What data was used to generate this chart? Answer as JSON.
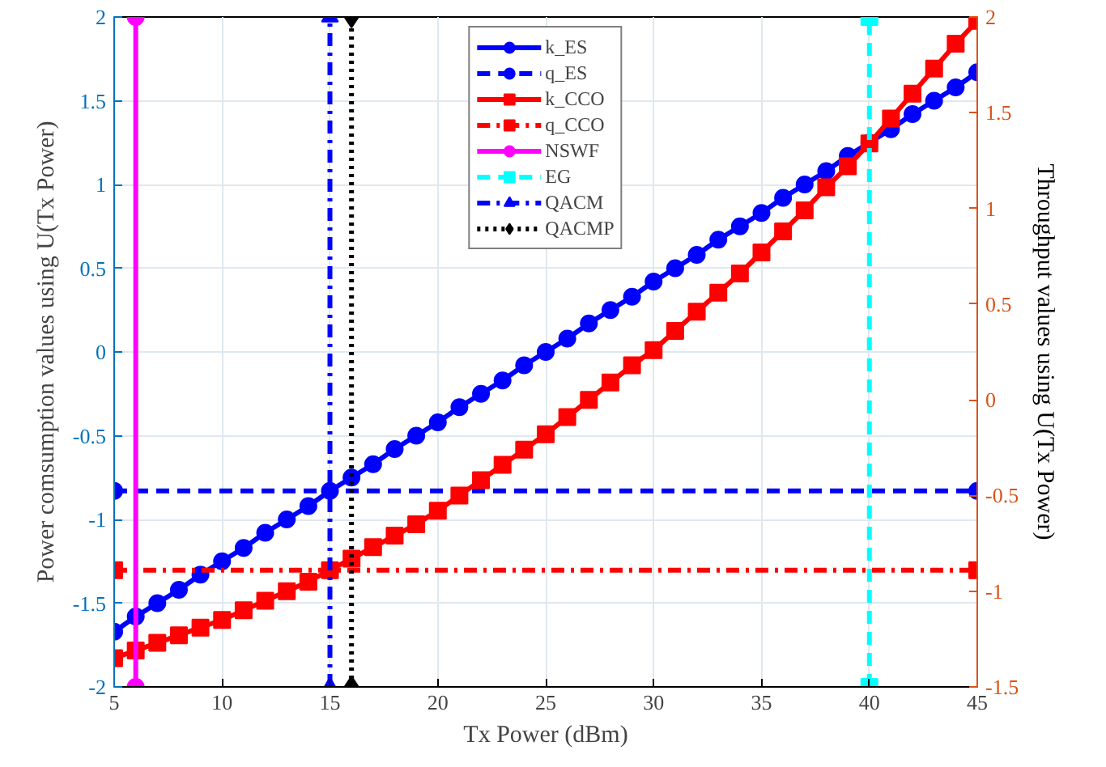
{
  "chart_data": {
    "type": "line",
    "xlabel": "Tx Power (dBm)",
    "ylabel": "Power comsumption values using U(Tx Power)",
    "y2label": "Throughput values using U(Tx Power)",
    "xlim": [
      5,
      45
    ],
    "xticks": [
      5,
      10,
      15,
      20,
      25,
      30,
      35,
      40,
      45
    ],
    "ylim": [
      -2,
      2
    ],
    "yticks": [
      -2,
      -1.5,
      -1,
      -0.5,
      0,
      0.5,
      1,
      1.5,
      2
    ],
    "y2lim": [
      -1.5,
      2
    ],
    "y2ticks": [
      -1.5,
      -1,
      -0.5,
      0,
      0.5,
      1,
      1.5,
      2
    ],
    "grid": true,
    "legend": "top",
    "x": [
      5,
      6,
      7,
      8,
      9,
      10,
      11,
      12,
      13,
      14,
      15,
      16,
      17,
      18,
      19,
      20,
      21,
      22,
      23,
      24,
      25,
      26,
      27,
      28,
      29,
      30,
      31,
      32,
      33,
      34,
      35,
      36,
      37,
      38,
      39,
      40,
      41,
      42,
      43,
      44,
      45
    ],
    "series": [
      {
        "name": "k_ES",
        "color": "#0000ff",
        "marker": "circle",
        "line_style": "solid",
        "values": [
          -1.67,
          -1.58,
          -1.5,
          -1.42,
          -1.33,
          -1.25,
          -1.17,
          -1.08,
          -1,
          -0.92,
          -0.83,
          -0.75,
          -0.67,
          -0.58,
          -0.5,
          -0.42,
          -0.33,
          -0.25,
          -0.17,
          -0.08,
          0,
          0.08,
          0.17,
          0.25,
          0.33,
          0.42,
          0.5,
          0.58,
          0.67,
          0.75,
          0.83,
          0.92,
          1,
          1.08,
          1.17,
          1.25,
          1.33,
          1.42,
          1.5,
          1.58,
          1.67
        ]
      },
      {
        "name": "q_ES",
        "color": "#0000ff",
        "marker": "circle",
        "line_style": "dashed",
        "x": [
          5,
          45
        ],
        "values": [
          -0.83,
          -0.83
        ]
      },
      {
        "name": "k_CCO",
        "color": "#ff0000",
        "marker": "square",
        "line_style": "solid",
        "axis": "y2",
        "values": [
          -1.35,
          -1.31,
          -1.27,
          -1.23,
          -1.19,
          -1.15,
          -1.1,
          -1.05,
          -1,
          -0.95,
          -0.89,
          -0.83,
          -0.77,
          -0.71,
          -0.65,
          -0.58,
          -0.5,
          -0.42,
          -0.34,
          -0.26,
          -0.18,
          -0.09,
          0,
          0.09,
          0.18,
          0.26,
          0.36,
          0.46,
          0.56,
          0.66,
          0.77,
          0.88,
          0.99,
          1.11,
          1.22,
          1.34,
          1.47,
          1.6,
          1.73,
          1.86,
          1.98
        ]
      },
      {
        "name": "q_CCO",
        "color": "#ff0000",
        "marker": "square",
        "line_style": "dashdot",
        "axis": "y2",
        "x": [
          5,
          45
        ],
        "values": [
          -0.89,
          -0.89
        ]
      },
      {
        "name": "NSWF",
        "color": "#ff00ff",
        "marker": "circle",
        "line_style": "solid",
        "x": [
          6,
          6
        ],
        "values": [
          -2,
          2
        ]
      },
      {
        "name": "EG",
        "color": "#00ffff",
        "marker": "square",
        "line_style": "dashed",
        "x": [
          40,
          40
        ],
        "values": [
          -2,
          2
        ]
      },
      {
        "name": "QACM",
        "color": "#0000ff",
        "marker": "triangle",
        "line_style": "dashdot",
        "x": [
          15,
          15
        ],
        "values": [
          -2,
          2
        ]
      },
      {
        "name": "QACMP",
        "color": "#000000",
        "marker": "diamond",
        "line_style": "dotted",
        "x": [
          16,
          16
        ],
        "values": [
          -2,
          2
        ]
      }
    ]
  }
}
